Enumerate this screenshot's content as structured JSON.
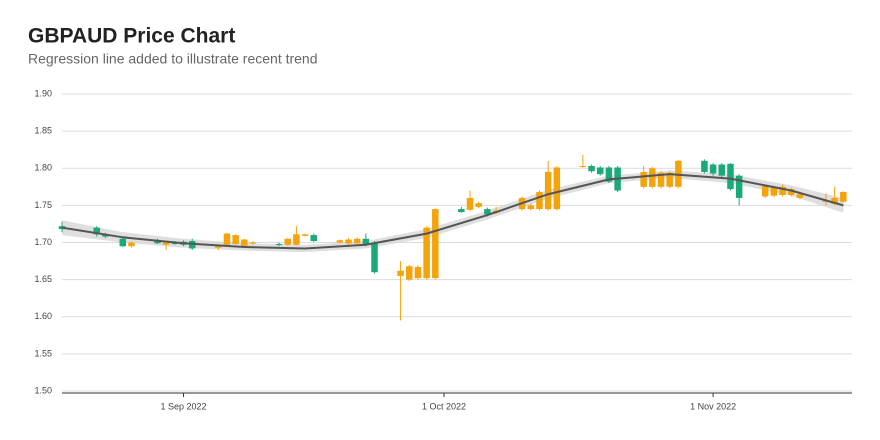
{
  "chart_data": {
    "type": "candlestick",
    "title": "GBPAUD Price Chart",
    "subtitle": "Regression line added to illustrate recent trend",
    "x": [
      "2022-08-18",
      "2022-08-22",
      "2022-08-23",
      "2022-08-25",
      "2022-08-26",
      "2022-08-29",
      "2022-08-30",
      "2022-08-31",
      "2022-09-01",
      "2022-09-02",
      "2022-09-05",
      "2022-09-06",
      "2022-09-07",
      "2022-09-08",
      "2022-09-09",
      "2022-09-12",
      "2022-09-13",
      "2022-09-14",
      "2022-09-15",
      "2022-09-16",
      "2022-09-19",
      "2022-09-20",
      "2022-09-21",
      "2022-09-22",
      "2022-09-23",
      "2022-09-26",
      "2022-09-27",
      "2022-09-28",
      "2022-09-29",
      "2022-09-30",
      "2022-10-03",
      "2022-10-04",
      "2022-10-05",
      "2022-10-06",
      "2022-10-07",
      "2022-10-10",
      "2022-10-11",
      "2022-10-12",
      "2022-10-13",
      "2022-10-14",
      "2022-10-17",
      "2022-10-18",
      "2022-10-19",
      "2022-10-20",
      "2022-10-21",
      "2022-10-24",
      "2022-10-25",
      "2022-10-26",
      "2022-10-27",
      "2022-10-28",
      "2022-10-31",
      "2022-11-01",
      "2022-11-02",
      "2022-11-03",
      "2022-11-04",
      "2022-11-07",
      "2022-11-08",
      "2022-11-09",
      "2022-11-10",
      "2022-11-11",
      "2022-11-14",
      "2022-11-15",
      "2022-11-16"
    ],
    "open": [
      1.722,
      1.72,
      1.711,
      1.705,
      1.695,
      1.703,
      1.697,
      1.7,
      1.701,
      1.702,
      1.693,
      1.697,
      1.698,
      1.695,
      1.7,
      1.698,
      1.697,
      1.697,
      1.709,
      1.71,
      1.7,
      1.699,
      1.699,
      1.705,
      1.7,
      1.655,
      1.65,
      1.652,
      1.652,
      1.652,
      1.745,
      1.744,
      1.748,
      1.745,
      1.74,
      1.745,
      1.745,
      1.745,
      1.745,
      1.745,
      1.803,
      1.803,
      1.801,
      1.801,
      1.801,
      1.775,
      1.775,
      1.775,
      1.775,
      1.775,
      1.81,
      1.805,
      1.805,
      1.806,
      1.79,
      1.762,
      1.763,
      1.764,
      1.764,
      1.76,
      1.756,
      1.752,
      1.755
    ],
    "high": [
      1.728,
      1.722,
      1.713,
      1.707,
      1.701,
      1.705,
      1.702,
      1.702,
      1.703,
      1.705,
      1.697,
      1.713,
      1.711,
      1.705,
      1.702,
      1.7,
      1.706,
      1.722,
      1.712,
      1.712,
      1.704,
      1.706,
      1.707,
      1.712,
      1.702,
      1.675,
      1.67,
      1.669,
      1.722,
      1.746,
      1.748,
      1.77,
      1.755,
      1.747,
      1.748,
      1.762,
      1.752,
      1.77,
      1.81,
      1.803,
      1.818,
      1.805,
      1.803,
      1.803,
      1.803,
      1.803,
      1.802,
      1.796,
      1.796,
      1.811,
      1.812,
      1.807,
      1.807,
      1.807,
      1.792,
      1.778,
      1.776,
      1.778,
      1.774,
      1.767,
      1.766,
      1.775,
      1.769
    ],
    "low": [
      1.714,
      1.708,
      1.706,
      1.694,
      1.693,
      1.698,
      1.69,
      1.697,
      1.695,
      1.69,
      1.69,
      1.696,
      1.697,
      1.694,
      1.697,
      1.695,
      1.696,
      1.696,
      1.708,
      1.701,
      1.699,
      1.697,
      1.697,
      1.695,
      1.658,
      1.595,
      1.648,
      1.65,
      1.65,
      1.65,
      1.74,
      1.742,
      1.746,
      1.735,
      1.738,
      1.743,
      1.743,
      1.743,
      1.743,
      1.743,
      1.801,
      1.794,
      1.79,
      1.78,
      1.768,
      1.773,
      1.773,
      1.773,
      1.773,
      1.773,
      1.793,
      1.79,
      1.788,
      1.77,
      1.75,
      1.76,
      1.761,
      1.762,
      1.762,
      1.758,
      1.75,
      1.75,
      1.753
    ],
    "close": [
      1.718,
      1.711,
      1.708,
      1.695,
      1.7,
      1.699,
      1.7,
      1.698,
      1.697,
      1.692,
      1.696,
      1.712,
      1.71,
      1.704,
      1.7,
      1.697,
      1.705,
      1.711,
      1.711,
      1.702,
      1.703,
      1.704,
      1.705,
      1.697,
      1.66,
      1.662,
      1.668,
      1.667,
      1.72,
      1.745,
      1.741,
      1.76,
      1.753,
      1.738,
      1.743,
      1.76,
      1.75,
      1.768,
      1.795,
      1.801,
      1.803,
      1.796,
      1.792,
      1.782,
      1.77,
      1.795,
      1.8,
      1.794,
      1.794,
      1.81,
      1.795,
      1.793,
      1.79,
      1.772,
      1.76,
      1.776,
      1.774,
      1.775,
      1.772,
      1.765,
      1.756,
      1.76,
      1.768
    ],
    "up_color": "#f5a30a",
    "down_color": "#1aa979",
    "regression": {
      "x": [
        "2022-08-18",
        "2022-08-25",
        "2022-09-01",
        "2022-09-08",
        "2022-09-15",
        "2022-09-22",
        "2022-09-29",
        "2022-10-06",
        "2022-10-13",
        "2022-10-20",
        "2022-10-27",
        "2022-11-03",
        "2022-11-10",
        "2022-11-16"
      ],
      "values": [
        1.72,
        1.707,
        1.699,
        1.694,
        1.692,
        1.697,
        1.712,
        1.737,
        1.765,
        1.785,
        1.792,
        1.786,
        1.77,
        1.75
      ],
      "lower": [
        1.71,
        1.7,
        1.693,
        1.689,
        1.687,
        1.692,
        1.706,
        1.731,
        1.759,
        1.78,
        1.787,
        1.78,
        1.763,
        1.74
      ],
      "upper": [
        1.73,
        1.714,
        1.705,
        1.699,
        1.697,
        1.702,
        1.718,
        1.743,
        1.771,
        1.79,
        1.797,
        1.792,
        1.777,
        1.76
      ],
      "color": "#555555",
      "band_color": "#d9d9d9"
    },
    "xlim": [
      "2022-08-18",
      "2022-11-17"
    ],
    "xticks": [
      {
        "value": "2022-09-01",
        "label": "1 Sep 2022"
      },
      {
        "value": "2022-10-01",
        "label": "1 Oct 2022"
      },
      {
        "value": "2022-11-01",
        "label": "1 Nov 2022"
      }
    ],
    "ylim": [
      1.5,
      1.9
    ],
    "yticks": [
      {
        "value": 1.5,
        "label": "1.50"
      },
      1.55,
      {
        "value": 1.6,
        "label": "1.60"
      },
      1.65,
      {
        "value": 1.7,
        "label": "1.70"
      },
      1.75,
      {
        "value": 1.8,
        "label": "1.80"
      },
      1.85,
      {
        "value": 1.9,
        "label": "1.90"
      }
    ],
    "grid": true
  }
}
